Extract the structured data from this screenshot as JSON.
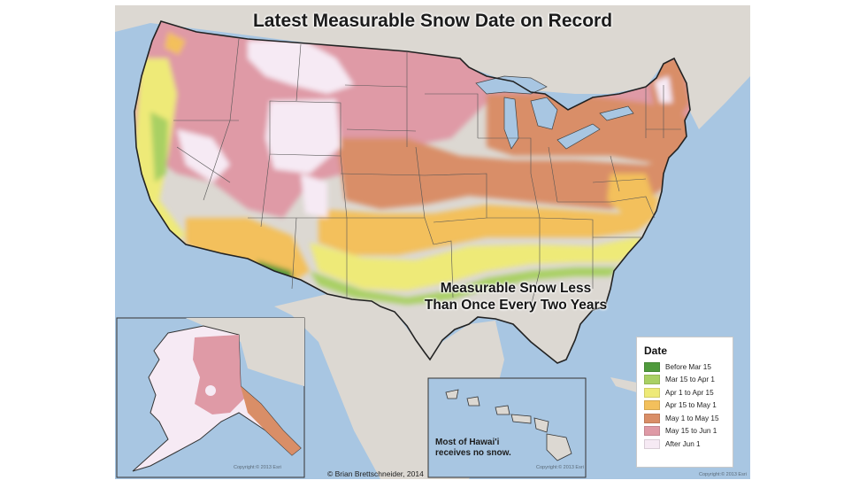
{
  "title": "Latest Measurable Snow Date on Record",
  "annotation": {
    "line1": "Measurable Snow Less",
    "line2": "Than Once Every Two Years"
  },
  "hawaii_note": {
    "line1": "Most of Hawai'i",
    "line2": "receives no snow."
  },
  "credit": "© Brian Brettschneider, 2014",
  "esri_copyright": "Copyright:© 2013 Esri",
  "legend": {
    "title": "Date",
    "items": [
      {
        "label": "Before Mar 15",
        "color": "#4f9a3c"
      },
      {
        "label": "Mar 15 to Apr 1",
        "color": "#a9d064"
      },
      {
        "label": "Apr 1 to Apr 15",
        "color": "#eeea78"
      },
      {
        "label": "Apr 15 to May 1",
        "color": "#f3c05c"
      },
      {
        "label": "May 1 to May 15",
        "color": "#d98e67"
      },
      {
        "label": "May 15 to Jun 1",
        "color": "#df9aa6"
      },
      {
        "label": "After Jun 1",
        "color": "#f6eaf4"
      }
    ]
  },
  "colors": {
    "water": "#a8c6e2",
    "land": "#dcd8d2",
    "no_snow_zone": "#dcd8d2"
  }
}
